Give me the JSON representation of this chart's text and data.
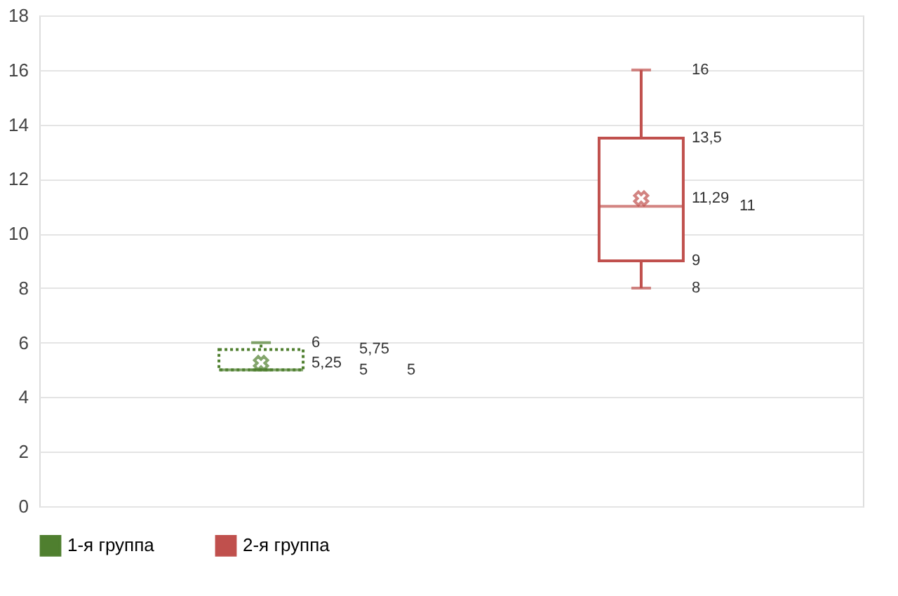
{
  "chart_data": {
    "type": "box",
    "categories": [
      null
    ],
    "annotations": [
      "6",
      "5,75",
      "5,25",
      "5",
      "5",
      "16",
      "13,5",
      "11,29",
      "11",
      "9",
      "8"
    ],
    "series": [
      {
        "name": "1-я группа",
        "color": "#4f7f2f",
        "line_style": "dotted",
        "boxes": [
          {
            "low": 5,
            "q1": 5,
            "median": 5,
            "q3": 5.75,
            "high": 6,
            "mean": 5.25
          }
        ],
        "marker": "cross"
      },
      {
        "name": "2-я группа",
        "color": "#c0504d",
        "line_style": "solid",
        "boxes": [
          {
            "low": 8,
            "q1": 9,
            "median": 11,
            "q3": 13.5,
            "high": 16,
            "mean": 11.29
          }
        ],
        "marker": "cross"
      }
    ],
    "ylim": [
      0,
      18
    ],
    "yticks": [
      0,
      2,
      4,
      6,
      8,
      10,
      12,
      14,
      16,
      18
    ],
    "grid": "y",
    "legend": "bottom"
  }
}
